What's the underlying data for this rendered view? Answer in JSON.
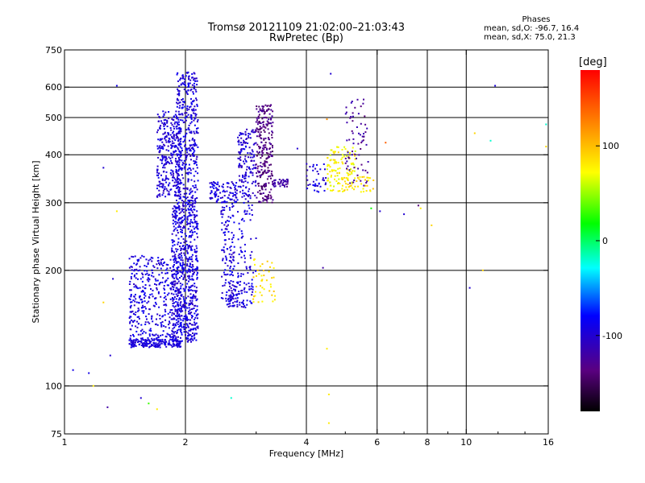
{
  "phase_stats": {
    "header": "Phases",
    "line1": "mean, sd,O: -96.7, 16.4",
    "line2": "mean, sd,X:  75.0, 21.3"
  },
  "chart_data": {
    "type": "scatter",
    "title": "Tromsø 20121109 21:02:00–21:03:43",
    "subtitle": "RwPretec (Bp)",
    "xlabel": "Frequency [MHz]",
    "ylabel": "Stationary phase Virtual Height [km]",
    "xscale": "log",
    "yscale": "log",
    "xlim": [
      1,
      16
    ],
    "ylim": [
      75,
      750
    ],
    "x_ticks": [
      1,
      2,
      4,
      6,
      8,
      10,
      16
    ],
    "x_tick_labels": [
      "1",
      "2",
      "4",
      "6",
      "8",
      "10",
      "16"
    ],
    "y_ticks": [
      75,
      100,
      200,
      300,
      400,
      500,
      600,
      750
    ],
    "y_tick_labels": [
      "75",
      "100",
      "200",
      "300",
      "400",
      "500",
      "600",
      "750"
    ],
    "x_gridlines": [
      2,
      4,
      6,
      8,
      10
    ],
    "y_gridlines": [
      100,
      200,
      300,
      400,
      500,
      600
    ],
    "colorbar": {
      "label": "[deg]",
      "range": [
        -180,
        180
      ],
      "ticks": [
        100,
        0,
        -100
      ],
      "tick_labels": [
        "100",
        "0",
        "-100"
      ],
      "colormap": "rainbow (black-purple-blue-cyan-green-yellow-red)"
    },
    "clusters": [
      {
        "x": [
          1.7,
          1.95
        ],
        "y": [
          310,
          520
        ],
        "phase": [
          -110,
          -85
        ],
        "density": 320
      },
      {
        "x": [
          1.9,
          2.15
        ],
        "y": [
          300,
          660
        ],
        "phase": [
          -110,
          -80
        ],
        "density": 380
      },
      {
        "x": [
          1.85,
          2.15
        ],
        "y": [
          130,
          300
        ],
        "phase": [
          -110,
          -80
        ],
        "density": 650
      },
      {
        "x": [
          1.45,
          1.95
        ],
        "y": [
          130,
          220
        ],
        "phase": [
          -110,
          -80
        ],
        "density": 420
      },
      {
        "x": [
          1.45,
          1.95
        ],
        "y": [
          126,
          132
        ],
        "phase": [
          -100,
          -90
        ],
        "density": 160
      },
      {
        "x": [
          2.3,
          2.7
        ],
        "y": [
          300,
          340
        ],
        "phase": [
          -110,
          -80
        ],
        "density": 100
      },
      {
        "x": [
          2.45,
          2.65
        ],
        "y": [
          160,
          300
        ],
        "phase": [
          -110,
          -80
        ],
        "density": 120
      },
      {
        "x": [
          2.55,
          2.95
        ],
        "y": [
          160,
          190
        ],
        "phase": [
          -110,
          -80
        ],
        "density": 90
      },
      {
        "x": [
          2.7,
          3.0
        ],
        "y": [
          190,
          310
        ],
        "phase": [
          -105,
          -80
        ],
        "density": 60
      },
      {
        "x": [
          2.7,
          3.0
        ],
        "y": [
          310,
          470
        ],
        "phase": [
          -115,
          -85
        ],
        "density": 150
      },
      {
        "x": [
          3.0,
          3.3
        ],
        "y": [
          300,
          540
        ],
        "phase": [
          -150,
          -120
        ],
        "density": 260
      },
      {
        "x": [
          3.3,
          3.6
        ],
        "y": [
          330,
          345
        ],
        "phase": [
          -130,
          -110
        ],
        "density": 40
      },
      {
        "x": [
          2.95,
          3.35
        ],
        "y": [
          165,
          215
        ],
        "phase": [
          70,
          100
        ],
        "density": 45
      },
      {
        "x": [
          4.0,
          4.5
        ],
        "y": [
          320,
          380
        ],
        "phase": [
          -110,
          -80
        ],
        "density": 40
      },
      {
        "x": [
          4.5,
          5.3
        ],
        "y": [
          320,
          420
        ],
        "phase": [
          60,
          90
        ],
        "density": 110
      },
      {
        "x": [
          5.0,
          5.7
        ],
        "y": [
          330,
          560
        ],
        "phase": [
          -140,
          -110
        ],
        "density": 70
      },
      {
        "x": [
          4.9,
          5.9
        ],
        "y": [
          320,
          355
        ],
        "phase": [
          70,
          100
        ],
        "density": 40
      }
    ],
    "isolated_points": [
      {
        "x": 1.35,
        "y": 605,
        "phase": -90
      },
      {
        "x": 4.6,
        "y": 650,
        "phase": -100
      },
      {
        "x": 11.8,
        "y": 605,
        "phase": -95
      },
      {
        "x": 1.25,
        "y": 370,
        "phase": -100
      },
      {
        "x": 1.05,
        "y": 110,
        "phase": -90
      },
      {
        "x": 1.15,
        "y": 108,
        "phase": -90
      },
      {
        "x": 1.3,
        "y": 120,
        "phase": -100
      },
      {
        "x": 1.55,
        "y": 93,
        "phase": -100
      },
      {
        "x": 1.28,
        "y": 88,
        "phase": -120
      },
      {
        "x": 1.18,
        "y": 100,
        "phase": 80
      },
      {
        "x": 1.7,
        "y": 87,
        "phase": 80
      },
      {
        "x": 1.62,
        "y": 90,
        "phase": 30
      },
      {
        "x": 2.6,
        "y": 93,
        "phase": -20
      },
      {
        "x": 4.55,
        "y": 95,
        "phase": 80
      },
      {
        "x": 4.55,
        "y": 80,
        "phase": 80
      },
      {
        "x": 4.5,
        "y": 125,
        "phase": 80
      },
      {
        "x": 4.4,
        "y": 203,
        "phase": -120
      },
      {
        "x": 4.5,
        "y": 495,
        "phase": 120
      },
      {
        "x": 6.3,
        "y": 430,
        "phase": 140
      },
      {
        "x": 7.0,
        "y": 280,
        "phase": -100
      },
      {
        "x": 7.7,
        "y": 290,
        "phase": 80
      },
      {
        "x": 8.2,
        "y": 262,
        "phase": 90
      },
      {
        "x": 10.2,
        "y": 180,
        "phase": -100
      },
      {
        "x": 11.0,
        "y": 200,
        "phase": 90
      },
      {
        "x": 10.5,
        "y": 455,
        "phase": 90
      },
      {
        "x": 11.5,
        "y": 435,
        "phase": -20
      },
      {
        "x": 15.8,
        "y": 480,
        "phase": -20
      },
      {
        "x": 15.8,
        "y": 420,
        "phase": 90
      },
      {
        "x": 1.35,
        "y": 285,
        "phase": 80
      },
      {
        "x": 1.25,
        "y": 165,
        "phase": 90
      },
      {
        "x": 1.32,
        "y": 190,
        "phase": -100
      },
      {
        "x": 3.8,
        "y": 415,
        "phase": -100
      },
      {
        "x": 6.1,
        "y": 285,
        "phase": -100
      },
      {
        "x": 5.8,
        "y": 290,
        "phase": 20
      },
      {
        "x": 7.6,
        "y": 295,
        "phase": -140
      }
    ]
  }
}
